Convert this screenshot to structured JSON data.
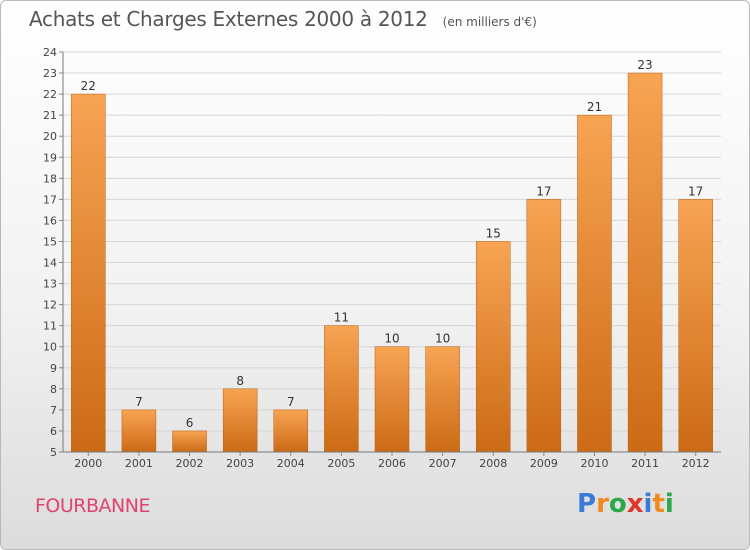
{
  "title": "Achats et Charges Externes 2000 à 2012",
  "subtitle": "(en milliers d'€)",
  "commune": "FOURBANNE",
  "logo": {
    "text": "Proxiti",
    "letters": [
      "P",
      "r",
      "o",
      "x",
      "i",
      "t",
      "i"
    ],
    "colors": [
      "#3a7bd5",
      "#f08a1c",
      "#2aa84a",
      "#e0342c",
      "#3a7bd5",
      "#f08a1c",
      "#2aa84a"
    ]
  },
  "colors": {
    "bar_top": "#f7a453",
    "bar_bottom": "#cc6a16",
    "commune": "#e0436b"
  },
  "chart_data": {
    "type": "bar",
    "title": "Achats et Charges Externes 2000 à 2012",
    "subtitle": "(en milliers d'€)",
    "categories": [
      "2000",
      "2001",
      "2002",
      "2003",
      "2004",
      "2005",
      "2006",
      "2007",
      "2008",
      "2009",
      "2010",
      "2011",
      "2012"
    ],
    "values": [
      22,
      7,
      6,
      8,
      7,
      11,
      10,
      10,
      15,
      17,
      21,
      23,
      17
    ],
    "ylim": [
      5,
      24
    ],
    "yticks": [
      5,
      6,
      7,
      8,
      9,
      10,
      11,
      12,
      13,
      14,
      15,
      16,
      17,
      18,
      19,
      20,
      21,
      22,
      23,
      24
    ],
    "grid": true,
    "data_labels": true
  }
}
